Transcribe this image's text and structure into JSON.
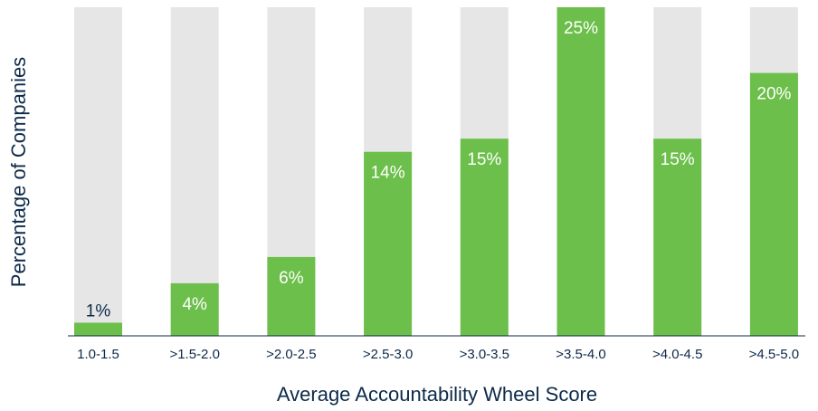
{
  "chart_data": {
    "type": "bar",
    "xlabel": "Average Accountability Wheel Score",
    "ylabel": "Percentage of Companies",
    "categories": [
      "1.0-1.5",
      ">1.5-2.0",
      ">2.0-2.5",
      ">2.5-3.0",
      ">3.0-3.5",
      ">3.5-4.0",
      ">4.0-4.5",
      ">4.5-5.0"
    ],
    "values": [
      1,
      4,
      6,
      14,
      15,
      25,
      15,
      20
    ],
    "value_labels": [
      "1%",
      "4%",
      "6%",
      "14%",
      "15%",
      "25%",
      "15%",
      "20%"
    ],
    "color": "#6cbf4a",
    "background_color": "#e6e6e6",
    "ylim": [
      0,
      25
    ]
  }
}
